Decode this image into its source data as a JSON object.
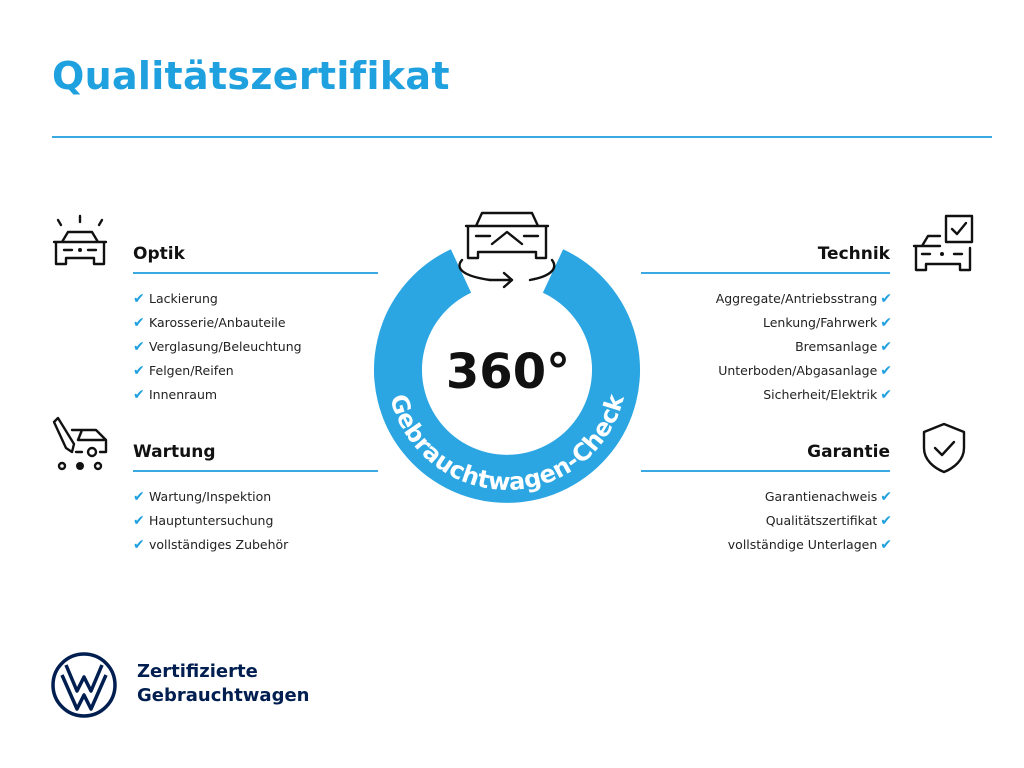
{
  "title": "Qualitätszertifikat",
  "center": {
    "number": "360°",
    "ring_text": "Gebrauchtwagen-Check",
    "icon": "car-rotate-icon"
  },
  "sections": {
    "optik": {
      "heading": "Optik",
      "icon": "car-lights-icon",
      "items": [
        "Lackierung",
        "Karosserie/Anbauteile",
        "Verglasung/Beleuchtung",
        "Felgen/Reifen",
        "Innenraum"
      ]
    },
    "wartung": {
      "heading": "Wartung",
      "icon": "service-van-icon",
      "items": [
        "Wartung/Inspektion",
        "Hauptuntersuchung",
        "vollständiges Zubehör"
      ]
    },
    "technik": {
      "heading": "Technik",
      "icon": "car-checklist-icon",
      "items": [
        "Aggregate/Antriebsstrang",
        "Lenkung/Fahrwerk",
        "Bremsanlage",
        "Unterboden/Abgasanlage",
        "Sicherheit/Elektrik"
      ]
    },
    "garantie": {
      "heading": "Garantie",
      "icon": "shield-check-icon",
      "items": [
        "Garantienachweis",
        "Qualitätszertifikat",
        "vollständige Unterlagen"
      ]
    }
  },
  "check_glyph": "✔",
  "brand": {
    "line1": "Zertifizierte",
    "line2": "Gebrauchtwagen",
    "logo": "vw-logo"
  },
  "colors": {
    "accent": "#1fa0df",
    "ring": "#2ba6e3",
    "brand_navy": "#001e50"
  }
}
